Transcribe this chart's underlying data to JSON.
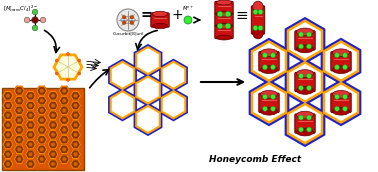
{
  "bg_color": "#ffffff",
  "title_text": "Honeycomb Effect",
  "title_fontsize": 6.5,
  "label_cucurbit": "Cucurbit[8]uril",
  "orange": "#FFA500",
  "blue": "#2020CC",
  "red_body": "#CC1111",
  "red_cap": "#DD3333",
  "red_dark_cap": "#AA0000",
  "green_dot": "#33EE33",
  "white": "#FFFFFF",
  "black": "#000000",
  "photo_bg": "#CC5500",
  "photo_cell_outer": "#EE7700",
  "photo_cell_inner": "#882200"
}
